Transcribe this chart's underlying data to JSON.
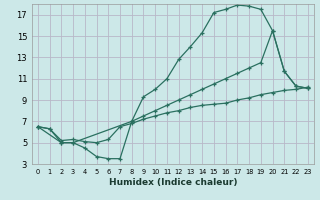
{
  "xlabel": "Humidex (Indice chaleur)",
  "bg_color": "#cce8e8",
  "grid_color": "#b8b8c8",
  "line_color": "#2a7060",
  "xlim": [
    -0.5,
    23.5
  ],
  "ylim": [
    3,
    18
  ],
  "yticks": [
    3,
    5,
    7,
    9,
    11,
    13,
    15,
    17
  ],
  "xticks": [
    0,
    1,
    2,
    3,
    4,
    5,
    6,
    7,
    8,
    9,
    10,
    11,
    12,
    13,
    14,
    15,
    16,
    17,
    18,
    19,
    20,
    21,
    22,
    23
  ],
  "line1_x": [
    0,
    1,
    2,
    3,
    4,
    5,
    6,
    7,
    8,
    9,
    10,
    11,
    12,
    13,
    14,
    15,
    16,
    17,
    18,
    19,
    20,
    21,
    22,
    23
  ],
  "line1_y": [
    6.5,
    6.3,
    5.0,
    5.0,
    4.5,
    3.7,
    3.5,
    3.5,
    7.0,
    9.3,
    10.0,
    11.0,
    12.8,
    14.0,
    15.3,
    17.2,
    17.5,
    17.9,
    17.8,
    17.5,
    15.5,
    11.7,
    10.3,
    10.1
  ],
  "line2_x": [
    0,
    2,
    3,
    8,
    9,
    10,
    11,
    12,
    13,
    14,
    15,
    16,
    17,
    18,
    19,
    20,
    21,
    22,
    23
  ],
  "line2_y": [
    6.5,
    5.0,
    5.0,
    7.0,
    7.5,
    8.0,
    8.5,
    9.0,
    9.5,
    10.0,
    10.5,
    11.0,
    11.5,
    12.0,
    12.5,
    15.5,
    11.7,
    10.3,
    10.1
  ],
  "line3_x": [
    0,
    1,
    2,
    3,
    4,
    5,
    6,
    7,
    8,
    9,
    10,
    11,
    12,
    13,
    14,
    15,
    16,
    17,
    18,
    19,
    20,
    21,
    22,
    23
  ],
  "line3_y": [
    6.5,
    6.3,
    5.2,
    5.3,
    5.1,
    5.0,
    5.3,
    6.5,
    6.8,
    7.2,
    7.5,
    7.8,
    8.0,
    8.3,
    8.5,
    8.6,
    8.7,
    9.0,
    9.2,
    9.5,
    9.7,
    9.9,
    10.0,
    10.2
  ]
}
